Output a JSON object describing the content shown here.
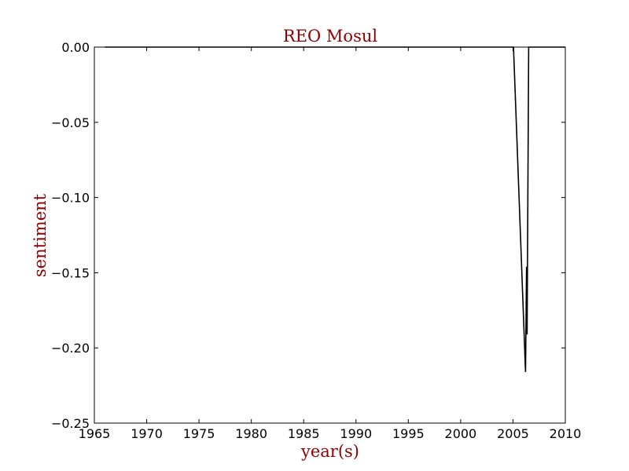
{
  "chart_data": {
    "type": "line",
    "title": "REO Mosul",
    "xlabel": "year(s)",
    "ylabel": "sentiment",
    "xlim": [
      1965,
      2010
    ],
    "ylim": [
      -0.25,
      0.0
    ],
    "x_ticks": [
      1965,
      1970,
      1975,
      1980,
      1985,
      1990,
      1995,
      2000,
      2005,
      2010
    ],
    "x_tick_labels": [
      "1965",
      "1970",
      "1975",
      "1980",
      "1985",
      "1990",
      "1995",
      "2000",
      "2005",
      "2010"
    ],
    "y_ticks": [
      0.0,
      -0.05,
      -0.1,
      -0.15,
      -0.2,
      -0.25
    ],
    "y_tick_labels": [
      "0.00",
      "−0.05",
      "−0.10",
      "−0.15",
      "−0.20",
      "−0.25"
    ],
    "grid": false,
    "series": [
      {
        "x": [
          1966,
          2005.05,
          2006.2,
          2006.3,
          2006.35,
          2006.5,
          2010
        ],
        "y": [
          0.0,
          0.0,
          -0.216,
          -0.146,
          -0.191,
          0.0,
          0.0
        ]
      }
    ],
    "colors": {
      "line": "#000000",
      "title": "#8b0000",
      "axis_label": "#8b0000"
    }
  }
}
